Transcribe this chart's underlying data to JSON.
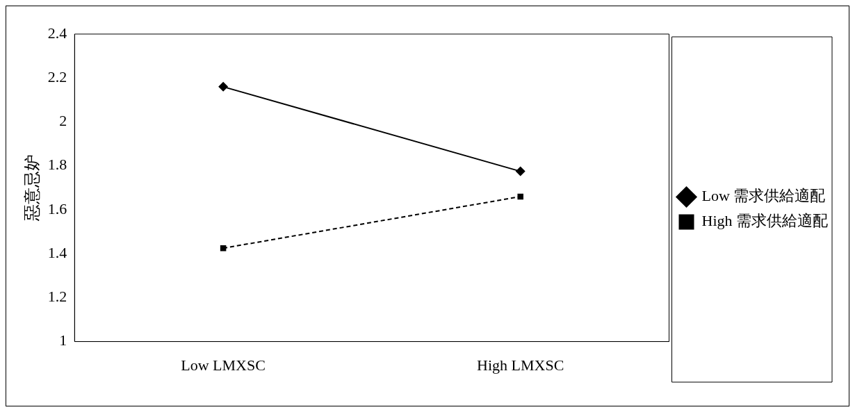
{
  "chart_data": {
    "type": "line",
    "ylabel": "惡意忌妒",
    "categories": [
      "Low LMXSC",
      "High LMXSC"
    ],
    "series": [
      {
        "name": "Low 需求供給適配",
        "color": "#000000",
        "values": [
          2.16,
          1.775
        ],
        "marker": "diamond",
        "line_style": "solid"
      },
      {
        "name": "High 需求供給適配",
        "color": "#000000",
        "values": [
          1.425,
          1.66
        ],
        "marker": "square",
        "line_style": "dashed"
      }
    ],
    "ylim": [
      1,
      2.4
    ],
    "yticks": [
      1,
      1.2,
      1.4,
      1.6,
      1.8,
      2,
      2.2,
      2.4
    ],
    "grid": false,
    "legend": "right"
  }
}
